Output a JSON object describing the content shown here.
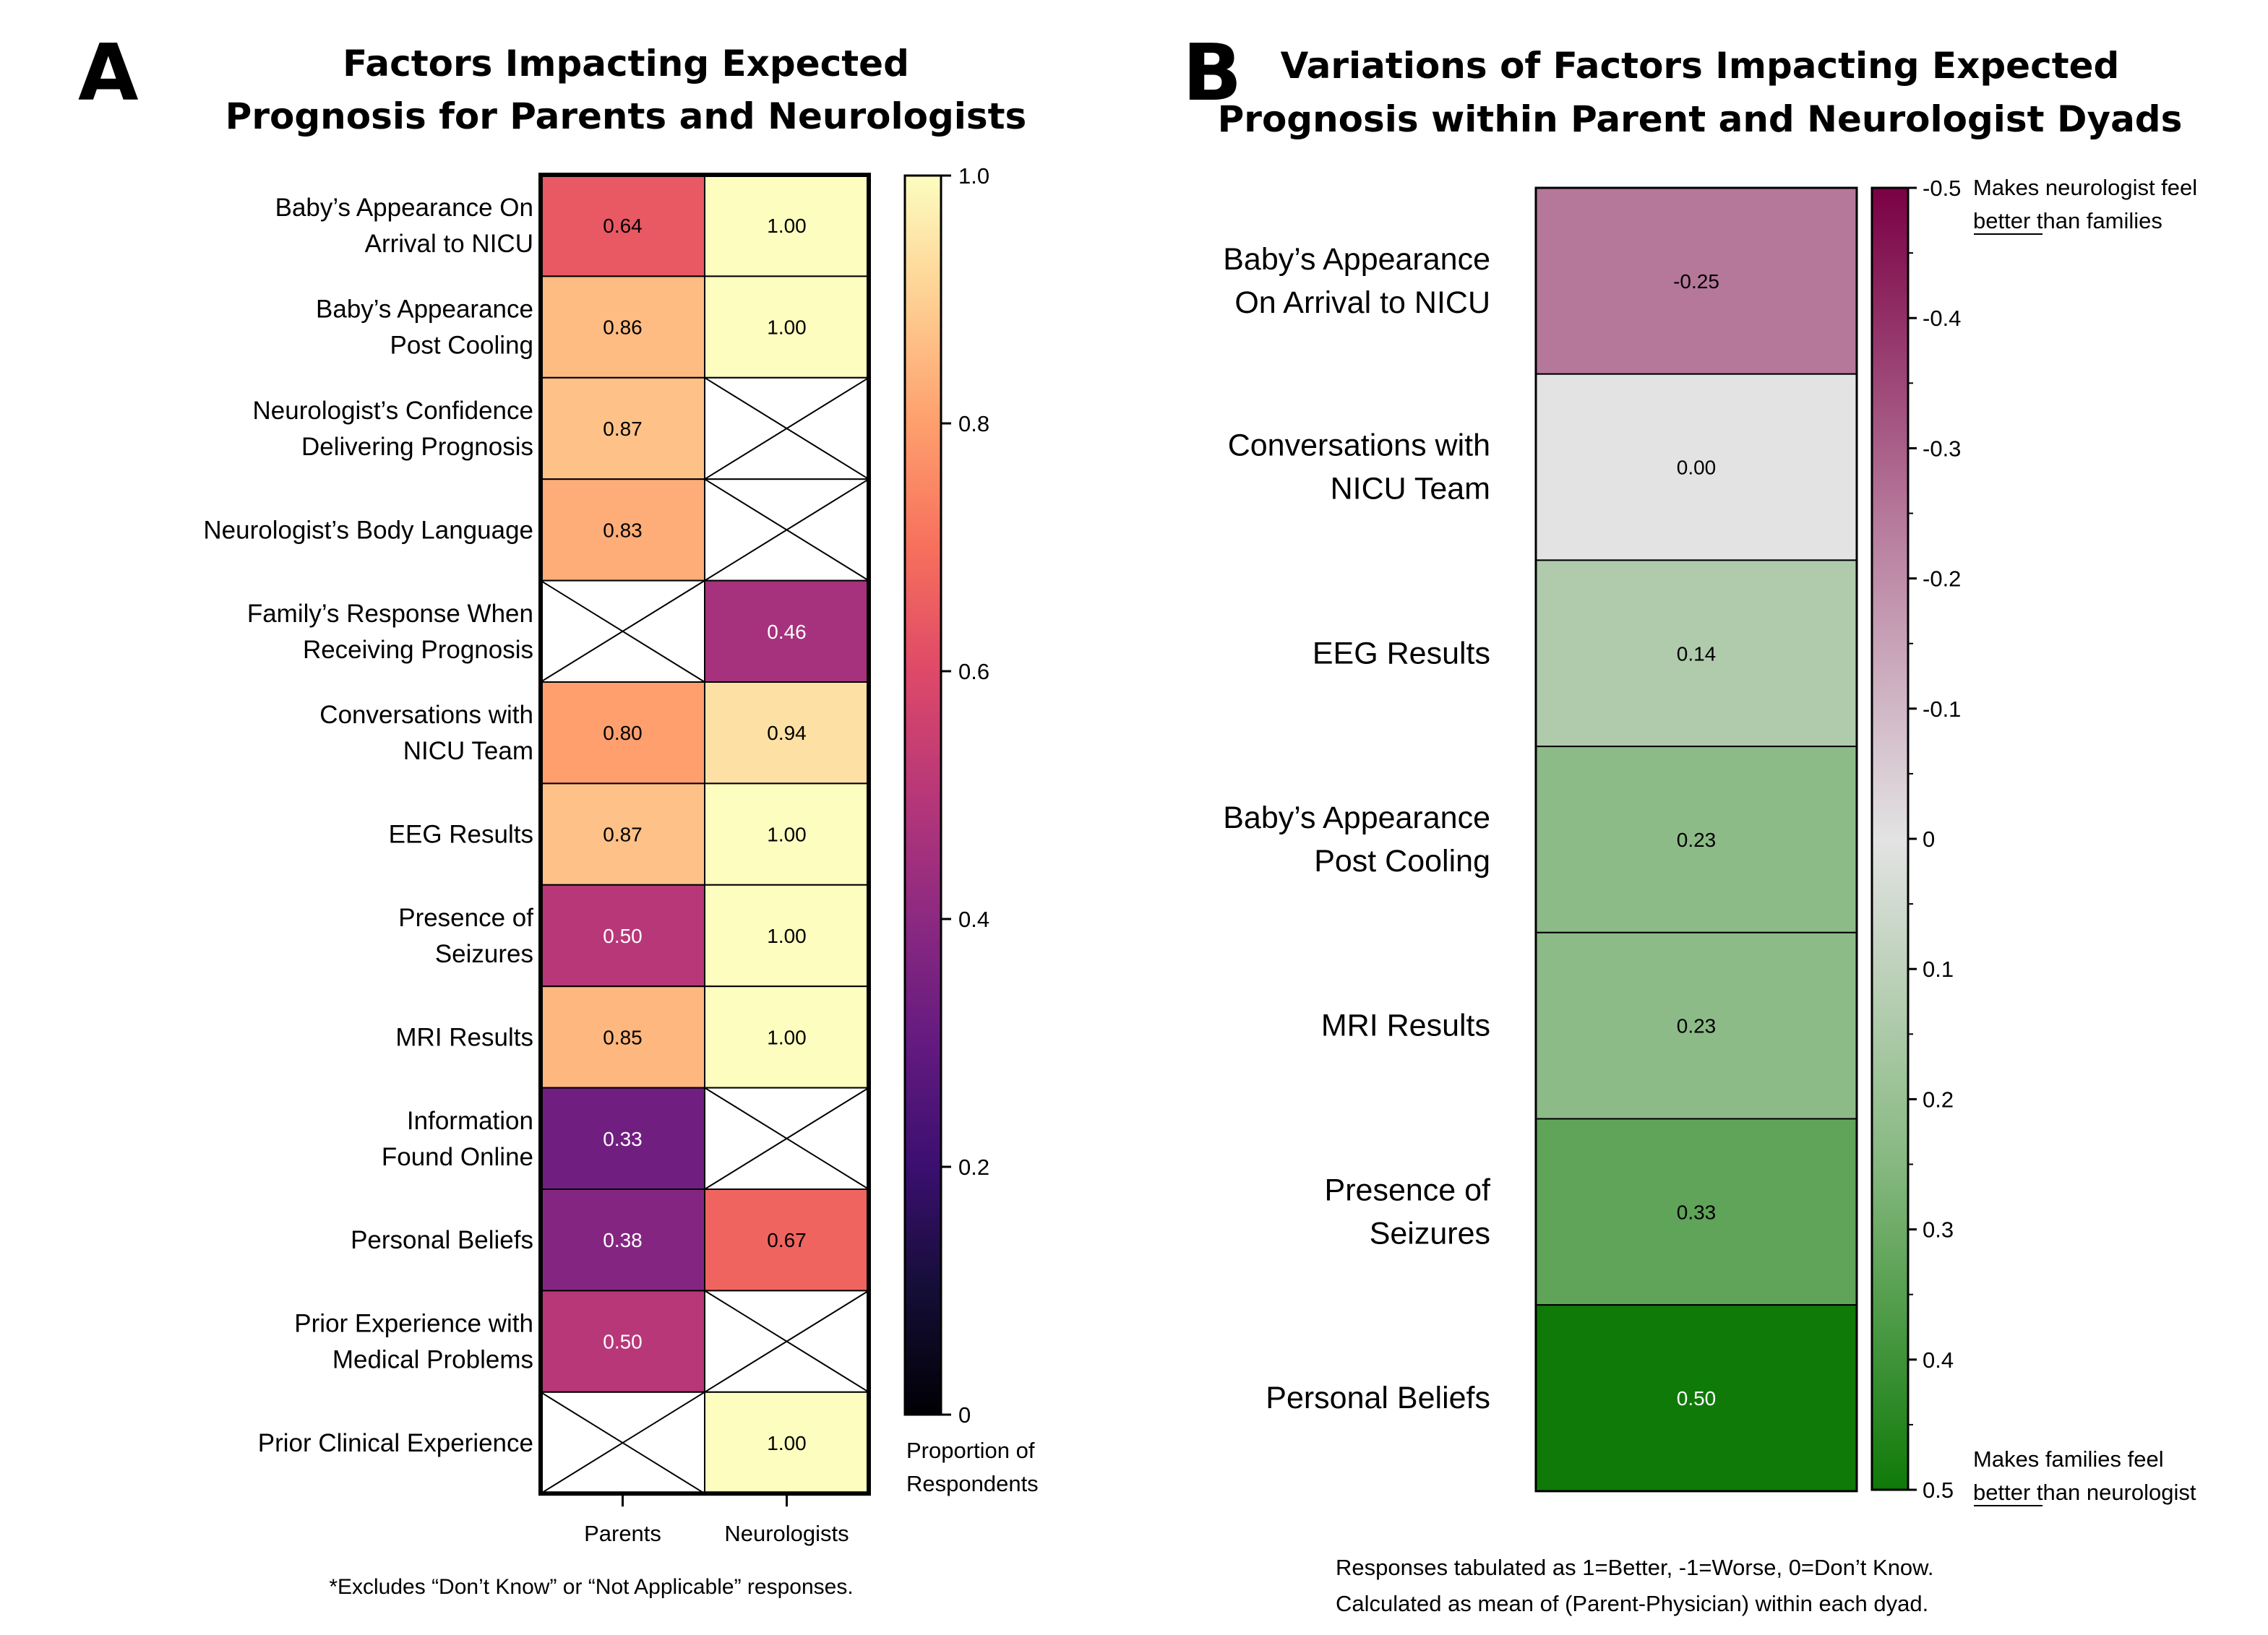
{
  "chart_data": [
    {
      "panel": "A",
      "type": "heatmap",
      "title_lines": [
        "Factors Impacting Expected",
        "Prognosis for Parents and Neurologists"
      ],
      "row_labels": [
        [
          "Baby’s Appearance On",
          "Arrival to NICU"
        ],
        [
          "Baby’s Appearance",
          "Post Cooling"
        ],
        [
          "Neurologist’s Confidence",
          "Delivering Prognosis"
        ],
        [
          "Neurologist’s Body Language"
        ],
        [
          "Family’s Response When",
          "Receiving Prognosis"
        ],
        [
          "Conversations with",
          "NICU Team"
        ],
        [
          "EEG Results"
        ],
        [
          "Presence of",
          "Seizures"
        ],
        [
          "MRI Results"
        ],
        [
          "Information",
          "Found Online"
        ],
        [
          "Personal Beliefs"
        ],
        [
          "Prior Experience with",
          "Medical Problems"
        ],
        [
          "Prior Clinical Experience"
        ]
      ],
      "columns": [
        "Parents",
        "Neurologists"
      ],
      "values": [
        [
          0.64,
          1.0
        ],
        [
          0.86,
          1.0
        ],
        [
          0.87,
          null
        ],
        [
          0.83,
          null
        ],
        [
          null,
          0.46
        ],
        [
          0.8,
          0.94
        ],
        [
          0.87,
          1.0
        ],
        [
          0.5,
          1.0
        ],
        [
          0.85,
          1.0
        ],
        [
          0.33,
          null
        ],
        [
          0.38,
          0.67
        ],
        [
          0.5,
          null
        ],
        [
          null,
          1.0
        ]
      ],
      "value_labels": [
        [
          "0.64",
          "1.00"
        ],
        [
          "0.86",
          "1.00"
        ],
        [
          "0.87",
          null
        ],
        [
          "0.83",
          null
        ],
        [
          null,
          "0.46"
        ],
        [
          "0.80",
          "0.94"
        ],
        [
          "0.87",
          "1.00"
        ],
        [
          "0.50",
          "1.00"
        ],
        [
          "0.85",
          "1.00"
        ],
        [
          "0.33",
          null
        ],
        [
          "0.38",
          "0.67"
        ],
        [
          "0.50",
          null
        ],
        [
          null,
          "1.00"
        ]
      ],
      "colorscale": "magma",
      "colorbar_range": [
        0,
        1.0
      ],
      "colorbar_ticks": [
        "0",
        "0.2",
        "0.4",
        "0.6",
        "0.8",
        "1.0"
      ],
      "colorbar_label_lines": [
        "Proportion of",
        "Respondents"
      ],
      "missing_marker": "X",
      "footnote": "*Excludes “Don’t Know” or “Not Applicable” responses."
    },
    {
      "panel": "B",
      "type": "heatmap",
      "title_lines": [
        "Variations of Factors Impacting Expected",
        "Prognosis within Parent and Neurologist Dyads"
      ],
      "row_labels": [
        [
          "Baby’s Appearance",
          "On Arrival to NICU"
        ],
        [
          "Conversations with",
          "NICU Team"
        ],
        [
          "EEG Results"
        ],
        [
          "Baby’s Appearance",
          "Post Cooling"
        ],
        [
          "MRI Results"
        ],
        [
          "Presence of",
          "Seizures"
        ],
        [
          "Personal Beliefs"
        ]
      ],
      "values": [
        -0.25,
        0.0,
        0.14,
        0.23,
        0.23,
        0.33,
        0.5
      ],
      "value_labels": [
        "-0.25",
        "0.00",
        "0.14",
        "0.23",
        "0.23",
        "0.33",
        "0.50"
      ],
      "colorscale": "diverging purple-gray-green",
      "colorbar_range": [
        -0.5,
        0.5
      ],
      "colorbar_ticks": [
        "-0.5",
        "-0.4",
        "-0.3",
        "-0.2",
        "-0.1",
        "0",
        "0.1",
        "0.2",
        "0.3",
        "0.4",
        "0.5"
      ],
      "colorbar_top_note_lines": [
        "Makes neurologist feel",
        "better than families"
      ],
      "colorbar_bottom_note_lines": [
        "Makes families feel",
        "better than neurologist"
      ],
      "footnote_lines": [
        "Responses tabulated as 1=Better, -1=Worse, 0=Don’t Know.",
        "Calculated as mean of (Parent-Physician) within each dyad."
      ]
    }
  ],
  "panel_letters": [
    "A",
    "B"
  ],
  "colors": {
    "neg_end": "#7a0044",
    "neutral": "#e3e3e3",
    "pos_end": "#0f7a08"
  }
}
